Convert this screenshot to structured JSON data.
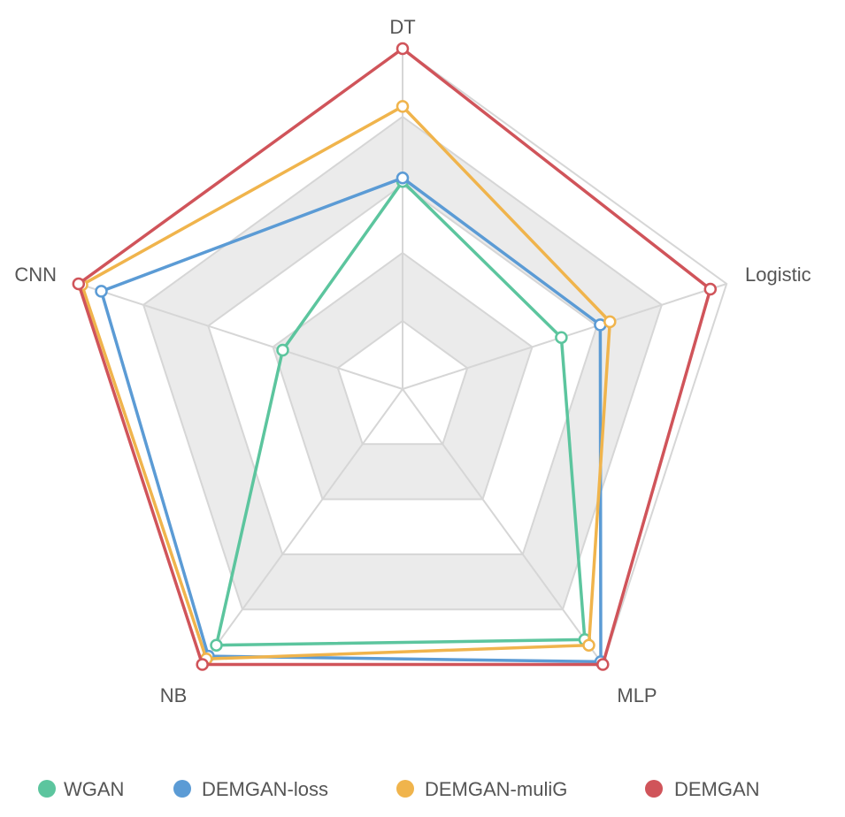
{
  "chart_data": {
    "type": "radar",
    "axes": [
      "DT",
      "Logistic",
      "MLP",
      "NB",
      "CNN"
    ],
    "max": 1.0,
    "rings": 5,
    "grid": true,
    "legend_position": "bottom",
    "series": [
      {
        "name": "WGAN",
        "color": "#5cc59e",
        "values": [
          0.61,
          0.49,
          0.91,
          0.93,
          0.37
        ]
      },
      {
        "name": "DEMGAN-loss",
        "color": "#5b9bd5",
        "values": [
          0.62,
          0.61,
          0.99,
          0.97,
          0.93
        ]
      },
      {
        "name": "DEMGAN-muliG",
        "color": "#f0b44c",
        "values": [
          0.83,
          0.64,
          0.93,
          0.98,
          0.99
        ]
      },
      {
        "name": "DEMGAN",
        "color": "#d0545a",
        "values": [
          1.0,
          0.95,
          1.0,
          1.0,
          1.0
        ]
      }
    ]
  }
}
